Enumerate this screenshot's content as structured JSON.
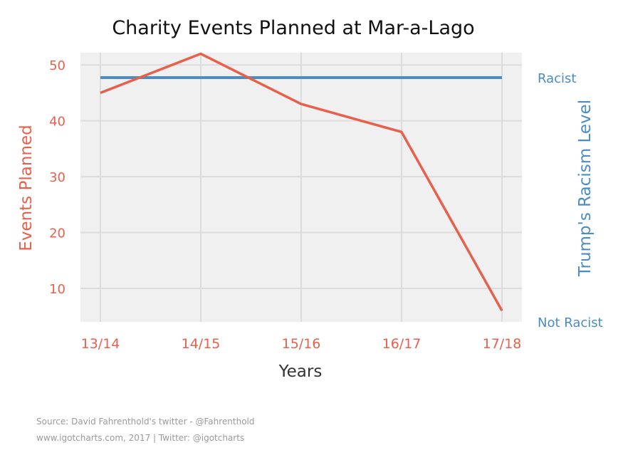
{
  "chart_data": {
    "type": "line",
    "title": "Charity Events Planned at Mar-a-Lago",
    "xlabel": "Years",
    "ylabel_left": "Events Planned",
    "ylabel_right": "Trump's Racism Level",
    "categories": [
      "13/14",
      "14/15",
      "15/16",
      "16/17",
      "17/18"
    ],
    "ylim": [
      4,
      55
    ],
    "yticks": [
      10,
      20,
      30,
      40,
      50
    ],
    "right_ticks": [
      "Racist",
      "Not Racist"
    ],
    "grid": true,
    "series": [
      {
        "name": "Events Planned",
        "axis": "left",
        "color": "#e8604c",
        "values": [
          45,
          52,
          43,
          38,
          6
        ]
      },
      {
        "name": "Trump's Racism Level",
        "axis": "right",
        "color": "#4a8cc4",
        "values": [
          1,
          1,
          1,
          1,
          1
        ],
        "scale": [
          "Not Racist",
          "Racist"
        ]
      }
    ]
  },
  "colors": {
    "left_axis": "#e8604c",
    "right_axis": "#4a8cc4",
    "plot_bg": "#f0f0f0",
    "grid": "#dcdcdc"
  },
  "footer": {
    "source": "Source: David Fahrenthold's twitter - @Fahrenthold",
    "credit": "www.igotcharts.com, 2017 | Twitter: @igotcharts"
  }
}
